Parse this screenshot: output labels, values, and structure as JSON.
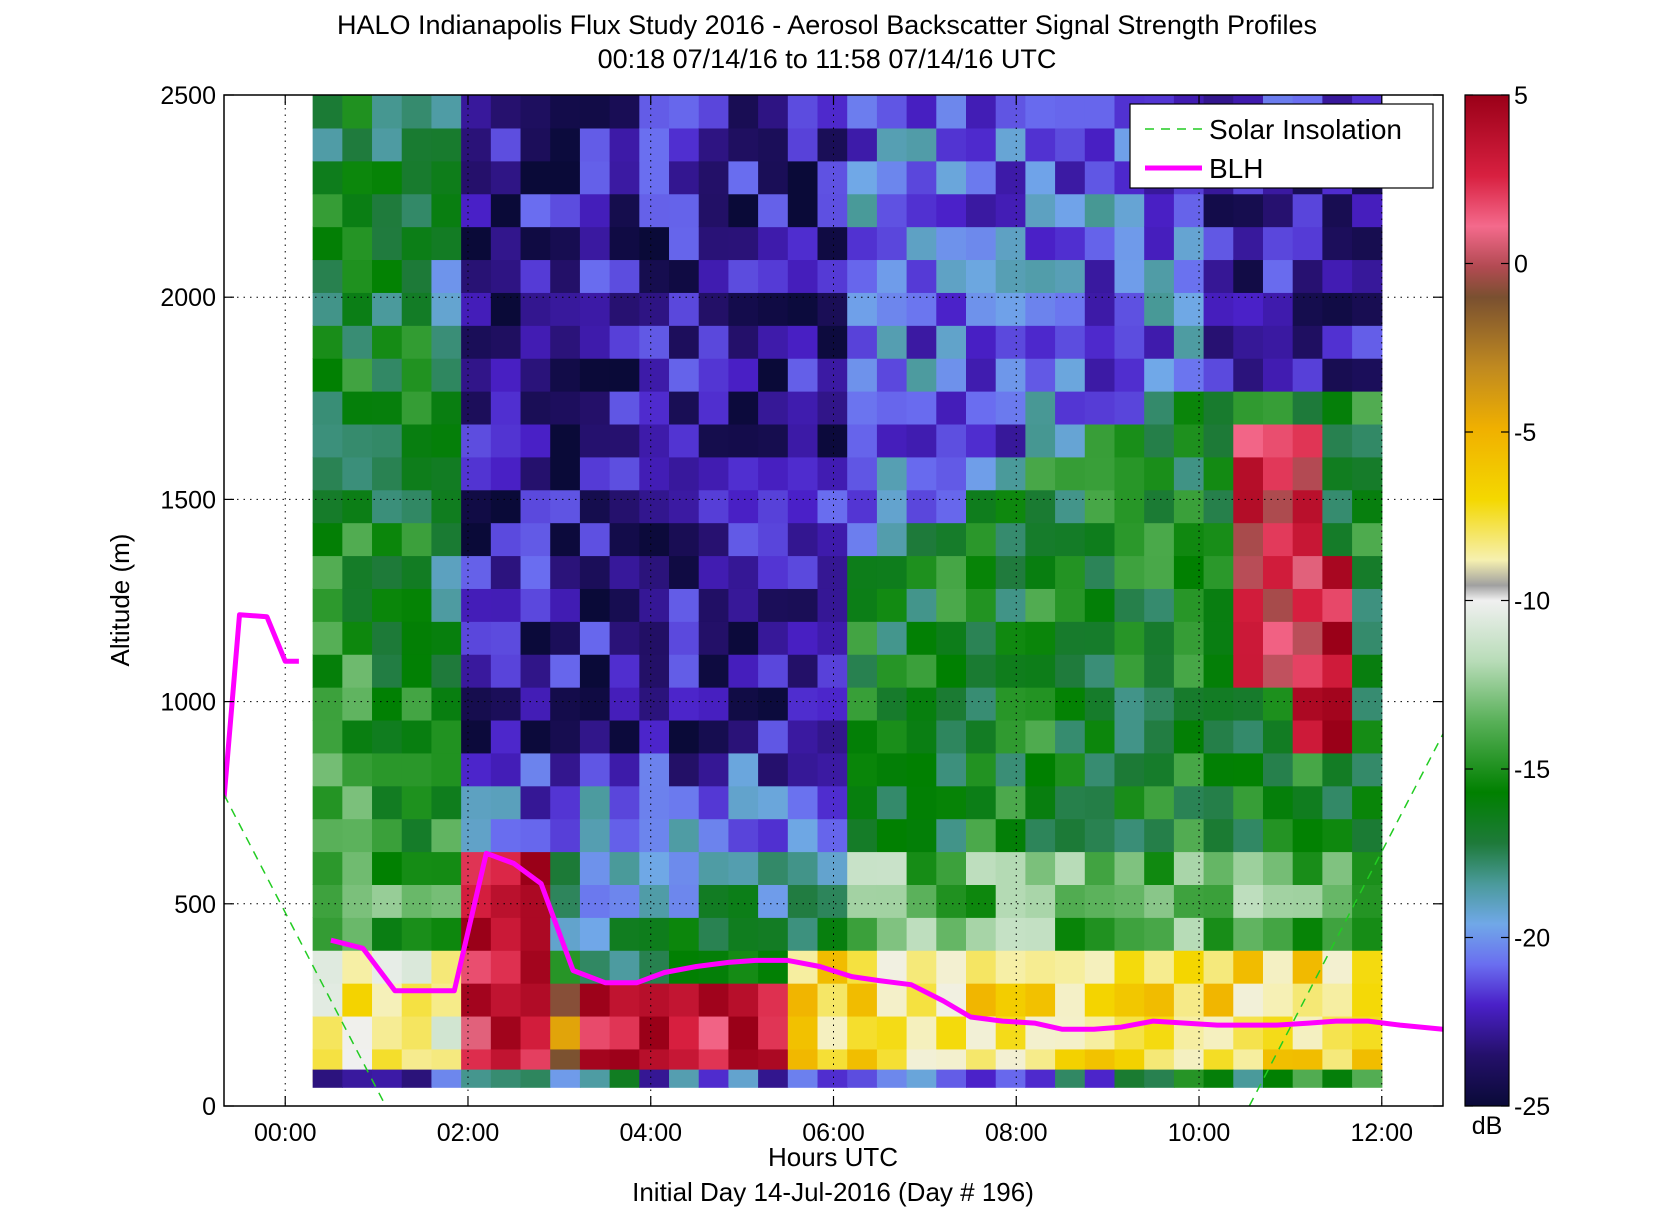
{
  "chart_data": {
    "type": "heatmap",
    "title": "HALO Indianapolis Flux Study 2016 - Aerosol Backscatter Signal Strength Profiles",
    "subtitle": "00:18 07/14/16 to 11:58 07/14/16  UTC",
    "xlabel": "Hours UTC",
    "xlabel2": "Initial Day 14-Jul-2016 (Day # 196)",
    "ylabel": "Altitude (m)",
    "xlim": [
      -0.67,
      12.67
    ],
    "ylim": [
      0,
      2500
    ],
    "xticks": [
      0,
      2,
      4,
      6,
      8,
      10,
      12
    ],
    "xtick_labels": [
      "00:00",
      "02:00",
      "04:00",
      "06:00",
      "08:00",
      "10:00",
      "12:00"
    ],
    "yticks": [
      0,
      500,
      1000,
      1500,
      2000,
      2500
    ],
    "ytick_labels": [
      "0",
      "500",
      "1000",
      "1500",
      "2000",
      "2500"
    ],
    "grid": true,
    "colorbar": {
      "label": "dB",
      "range": [
        -25,
        5
      ],
      "ticks": [
        5,
        0,
        -5,
        -10,
        -15,
        -20,
        -25
      ],
      "tick_labels": [
        "5",
        "0",
        "-5",
        "-10",
        "-15",
        "-20",
        "-25"
      ]
    },
    "legend": {
      "placement": "top-right",
      "entries": [
        {
          "name": "Solar Insolation",
          "color": "#22cc22",
          "style": "dashed"
        },
        {
          "name": "BLH",
          "color": "#ff00ff",
          "style": "solid"
        }
      ]
    },
    "heatmap": {
      "x_start": 0.3,
      "x_end": 12.0,
      "y_start": 60,
      "y_end": 2500,
      "columns": 36,
      "rows": 30,
      "zones": [
        {
          "region": "near-surface layer 90-360 m, 03:30-12:00",
          "value_db": -8
        },
        {
          "region": "near-surface layer 90-600 m, 02:00-05:00",
          "value_db": 2
        },
        {
          "region": "boundary layer 300-1800 m, 06:00-10:30",
          "value_db": -16
        },
        {
          "region": "free troposphere 1200-2500 m, 02:00-06:00",
          "value_db": -23
        },
        {
          "region": "upper layer 1200-2500 m, 06:00-10:00",
          "value_db": -20
        },
        {
          "region": "residual layer 0-2000 m, 00:18-01:30",
          "value_db": -15
        },
        {
          "region": "cloud layer 900-1700 m, 10:30-11:30",
          "value_db": 2
        }
      ]
    },
    "series": [
      {
        "name": "BLH",
        "x": [
          -0.67,
          -0.5,
          -0.2,
          0.0,
          0.15
        ],
        "y": [
          760,
          1215,
          1210,
          1100,
          1100
        ]
      },
      {
        "name": "BLH",
        "x": [
          0.5,
          0.85,
          1.2,
          1.5,
          1.85,
          2.2,
          2.5,
          2.8,
          3.15,
          3.5,
          3.85,
          4.15,
          4.5,
          4.85,
          5.15,
          5.5,
          5.85,
          6.2,
          6.5,
          6.85,
          7.2,
          7.5,
          7.85,
          8.2,
          8.5,
          8.85,
          9.15,
          9.5,
          9.85,
          10.2,
          10.5,
          10.85,
          11.2,
          11.5,
          11.85,
          12.2,
          12.67
        ],
        "y": [
          410,
          390,
          285,
          285,
          285,
          625,
          600,
          550,
          335,
          305,
          305,
          330,
          345,
          355,
          360,
          360,
          345,
          320,
          310,
          300,
          260,
          220,
          210,
          205,
          190,
          190,
          195,
          210,
          205,
          200,
          200,
          200,
          205,
          210,
          210,
          200,
          190
        ]
      },
      {
        "name": "Solar Insolation",
        "x": [
          -0.67,
          1.1
        ],
        "y": [
          770,
          0
        ]
      },
      {
        "name": "Solar Insolation",
        "x": [
          10.55,
          12.67
        ],
        "y": [
          0,
          920
        ]
      }
    ]
  }
}
